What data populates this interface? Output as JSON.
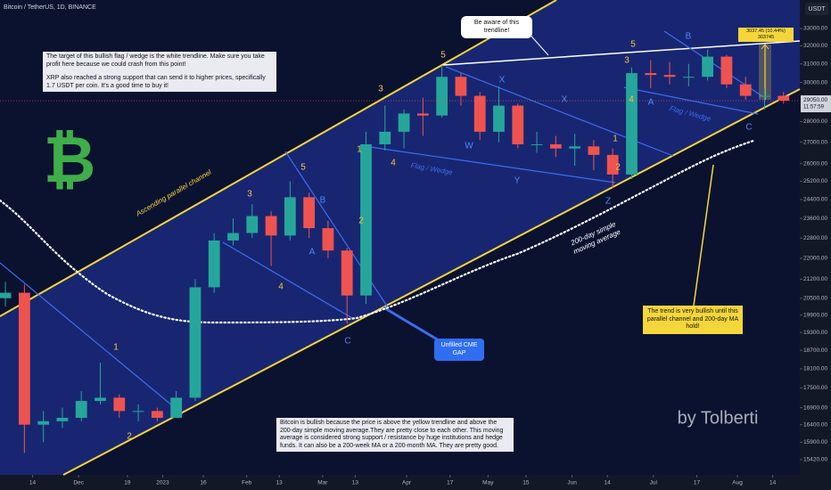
{
  "chart_data": {
    "type": "candlestick",
    "title": "Bitcoin / TetherUS, 1D, BINANCE",
    "currency": "USDT",
    "log_scale": true,
    "up_color": "#26a69a",
    "down_color": "#ef5350",
    "x": [
      -10,
      -3,
      4,
      11,
      18,
      25,
      32,
      39,
      46,
      53,
      60,
      67,
      74,
      81,
      88,
      95,
      102,
      109,
      116,
      123,
      130,
      137,
      144,
      151,
      158,
      165,
      172,
      179,
      186,
      193,
      200,
      207,
      214,
      221,
      228,
      235,
      242,
      249,
      256,
      263,
      270,
      277
    ],
    "open": [
      20500,
      20700,
      16400,
      16500,
      16600,
      17100,
      17200,
      16800,
      16800,
      16600,
      17200,
      20900,
      22700,
      23000,
      23700,
      22900,
      24500,
      23200,
      22300,
      20600,
      26900,
      27500,
      28400,
      28300,
      30300,
      29300,
      27500,
      28800,
      26900,
      26900,
      26700,
      26800,
      26400,
      25500,
      30500,
      30400,
      30300,
      30300,
      31400,
      29900,
      29300,
      29300
    ],
    "high": [
      21100,
      21000,
      16800,
      16900,
      17400,
      18300,
      17300,
      17000,
      16900,
      17400,
      21200,
      23000,
      23600,
      24200,
      23900,
      25200,
      24700,
      23500,
      22400,
      27500,
      28800,
      28600,
      29200,
      30900,
      30500,
      29500,
      29800,
      28900,
      27500,
      27300,
      27400,
      27100,
      26700,
      30800,
      31200,
      31100,
      31000,
      31800,
      31500,
      30300,
      29700,
      29500
    ],
    "low": [
      20200,
      15600,
      15900,
      16300,
      16500,
      17000,
      16600,
      16500,
      16500,
      16600,
      17100,
      20700,
      22500,
      22800,
      21700,
      22700,
      22800,
      22000,
      19600,
      20300,
      26600,
      26700,
      27300,
      28200,
      28800,
      27100,
      27000,
      26700,
      26500,
      26300,
      25900,
      25700,
      24900,
      25300,
      29700,
      29900,
      29800,
      30100,
      29700,
      29100,
      28600,
      28900
    ],
    "close": [
      20700,
      16400,
      16500,
      16600,
      17100,
      17200,
      16800,
      16800,
      16600,
      17200,
      20900,
      22700,
      23000,
      23700,
      22900,
      24500,
      23200,
      22300,
      20600,
      26900,
      27500,
      28400,
      28300,
      30300,
      29300,
      27500,
      28800,
      26900,
      26900,
      26700,
      26800,
      26400,
      25500,
      30500,
      30400,
      30300,
      30300,
      31400,
      29900,
      29300,
      29300,
      29050
    ],
    "xlim": [
      -12,
      283
    ],
    "xticks": [
      {
        "value": 0,
        "label": "14"
      },
      {
        "value": 17,
        "label": "Dec"
      },
      {
        "value": 35,
        "label": "19"
      },
      {
        "value": 48,
        "label": "2023"
      },
      {
        "value": 63,
        "label": "16"
      },
      {
        "value": 79,
        "label": "Feb"
      },
      {
        "value": 91,
        "label": "13"
      },
      {
        "value": 107,
        "label": "Mar"
      },
      {
        "value": 119,
        "label": "13"
      },
      {
        "value": 138,
        "label": "Apr"
      },
      {
        "value": 154,
        "label": "17"
      },
      {
        "value": 168,
        "label": "May"
      },
      {
        "value": 182,
        "label": "15"
      },
      {
        "value": 199,
        "label": "Jun"
      },
      {
        "value": 212,
        "label": "14"
      },
      {
        "value": 229,
        "label": "Jul"
      },
      {
        "value": 245,
        "label": "17"
      },
      {
        "value": 260,
        "label": "Aug"
      },
      {
        "value": 273,
        "label": "14"
      }
    ],
    "ylim": [
      15010,
      34700
    ],
    "yticks": [
      {
        "value": 33000,
        "label": "33000.00"
      },
      {
        "value": 32000,
        "label": "32000.00"
      },
      {
        "value": 31000,
        "label": "31000.00"
      },
      {
        "value": 30000,
        "label": "30000.00"
      },
      {
        "value": 28000,
        "label": "28000.00"
      },
      {
        "value": 27000,
        "label": "27000.00"
      },
      {
        "value": 26000,
        "label": "26000.00"
      },
      {
        "value": 25200,
        "label": "25200.00"
      },
      {
        "value": 24400,
        "label": "24400.00"
      },
      {
        "value": 23600,
        "label": "23600.00"
      },
      {
        "value": 22800,
        "label": "22800.00"
      },
      {
        "value": 22000,
        "label": "22000.00"
      },
      {
        "value": 21200,
        "label": "21200.00"
      },
      {
        "value": 20500,
        "label": "20500.00"
      },
      {
        "value": 19900,
        "label": "19900.00"
      },
      {
        "value": 19300,
        "label": "19300.00"
      },
      {
        "value": 18700,
        "label": "18700.00"
      },
      {
        "value": 18100,
        "label": "18100.00"
      },
      {
        "value": 17500,
        "label": "17500.00"
      },
      {
        "value": 16900,
        "label": "16900.00"
      },
      {
        "value": 16400,
        "label": "16400.00"
      },
      {
        "value": 15900,
        "label": "15900.00"
      },
      {
        "value": 15420,
        "label": "15420.00"
      }
    ],
    "last_price": {
      "value": 29050,
      "label": "29050.00"
    },
    "countdown": "11:57:59",
    "logo": "₿",
    "notes": {
      "target": "The target of this bullish flag / wedge is the white trendline. Make sure you take profit here because we could crash from this point!",
      "xrp": "XRP also reached a strong support that can send it to higher prices, specifically 1.7 USDT per coin. It's a good time to buy it!",
      "trendline": "Be aware of this trendline!",
      "measure": "3037.45 (10.44%) 303745",
      "trend": "The trend is very bullish until this parallel channel and 200-day MA hold!",
      "cme_gap": "Unfilled CME GAP",
      "bullish": "Bitcoin is bullish because the price is above the yellow trendline and above the 200-day simple moving average.They are pretty close to each other. This moving average is considered strong support / resistance by huge institutions and hedge funds. It can also be a 200-week MA or a 200-month MA. They are pretty good.",
      "author": "by Tolberti",
      "channel": "Ascending parallel channel",
      "sma": [
        "200-day simple",
        "moving average"
      ],
      "flags": [
        "Flag / Wedge",
        "Flag / Wedge"
      ]
    },
    "orange_wave_labels": [
      "1",
      "2",
      "3",
      "4",
      "5",
      "1",
      "2",
      "3",
      "4",
      "5",
      "1",
      "2",
      "3",
      "4",
      "5"
    ],
    "blue_wave_labels": [
      "A",
      "B",
      "C",
      "W",
      "X",
      "Y",
      "X",
      "Z",
      "A",
      "B",
      "C"
    ]
  }
}
